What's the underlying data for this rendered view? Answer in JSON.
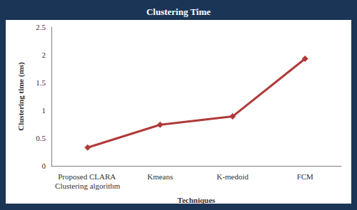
{
  "chart_data": {
    "type": "line",
    "title": "Clustering Time",
    "categories": [
      "Proposed CLARA Clustering algorithm",
      "Kmeans",
      "K-medoid",
      "FCM"
    ],
    "values": [
      0.33,
      0.74,
      0.89,
      1.93
    ],
    "color": "#b03a3a",
    "marker": "diamond",
    "x_label": "Techniques",
    "y_label": "Clustering time (ms)",
    "ylim": [
      0,
      2.5
    ],
    "yticks": [
      0,
      0.5,
      1,
      1.5,
      2,
      2.5
    ],
    "grid": false
  }
}
